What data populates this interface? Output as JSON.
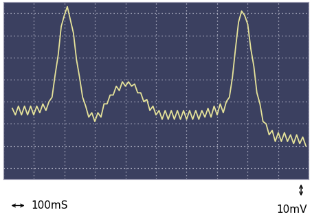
{
  "chart_data": {
    "type": "line",
    "xlabel": "100mS",
    "ylabel": "10mV",
    "x": [
      30,
      40,
      50,
      60,
      70,
      80,
      90,
      100,
      110,
      120,
      130,
      140,
      150,
      160,
      170,
      180,
      190,
      200,
      210,
      220,
      230,
      240,
      250,
      260,
      270,
      280,
      290,
      300,
      310,
      320,
      330,
      340,
      350,
      360,
      370,
      380,
      390,
      400,
      410,
      420,
      430,
      440,
      450,
      460,
      470,
      480,
      490,
      500,
      510,
      520,
      530,
      540,
      550,
      560,
      570,
      580,
      590,
      600,
      610,
      620,
      630,
      640,
      650,
      660,
      670,
      680,
      690,
      700,
      710,
      720,
      730,
      740,
      750,
      760,
      770,
      780,
      790,
      800,
      810,
      820,
      830,
      840,
      850,
      860,
      870,
      880,
      890,
      900,
      910,
      920,
      930,
      940,
      950,
      960,
      970,
      980,
      990
    ],
    "values": [
      -3,
      -6,
      -2,
      -6,
      -2,
      -6,
      -2,
      -6,
      -2,
      -5,
      -1,
      -4,
      0,
      2,
      12,
      21,
      34,
      39,
      43,
      37,
      31,
      19,
      11,
      2,
      -2,
      -7,
      -5,
      -9,
      -5,
      -7,
      -1,
      -1,
      3,
      3,
      7,
      5,
      9,
      7,
      9,
      7,
      8,
      4,
      4,
      0,
      1,
      -4,
      -2,
      -6,
      -4,
      -8,
      -4,
      -8,
      -4,
      -8,
      -4,
      -8,
      -4,
      -8,
      -4,
      -8,
      -4,
      -8,
      -4,
      -7,
      -3,
      -7,
      -2,
      -6,
      -1,
      -5,
      0,
      2,
      11,
      24,
      36,
      41,
      39,
      35,
      24,
      16,
      4,
      -1,
      -9,
      -10,
      -15,
      -13,
      -18,
      -14,
      -18,
      -14,
      -18,
      -15,
      -19,
      -15,
      -19,
      -16,
      -20
    ],
    "color": "#e6e39a",
    "xlim": [
      0,
      1000
    ],
    "xticks": [
      0,
      100,
      200,
      300,
      400,
      500,
      600,
      700,
      800,
      900,
      1000
    ],
    "ylim": [
      -35,
      45
    ],
    "yticks": [
      -30,
      -20,
      -10,
      0,
      10,
      20,
      30,
      40
    ],
    "grid": true,
    "tick_labels": false
  }
}
